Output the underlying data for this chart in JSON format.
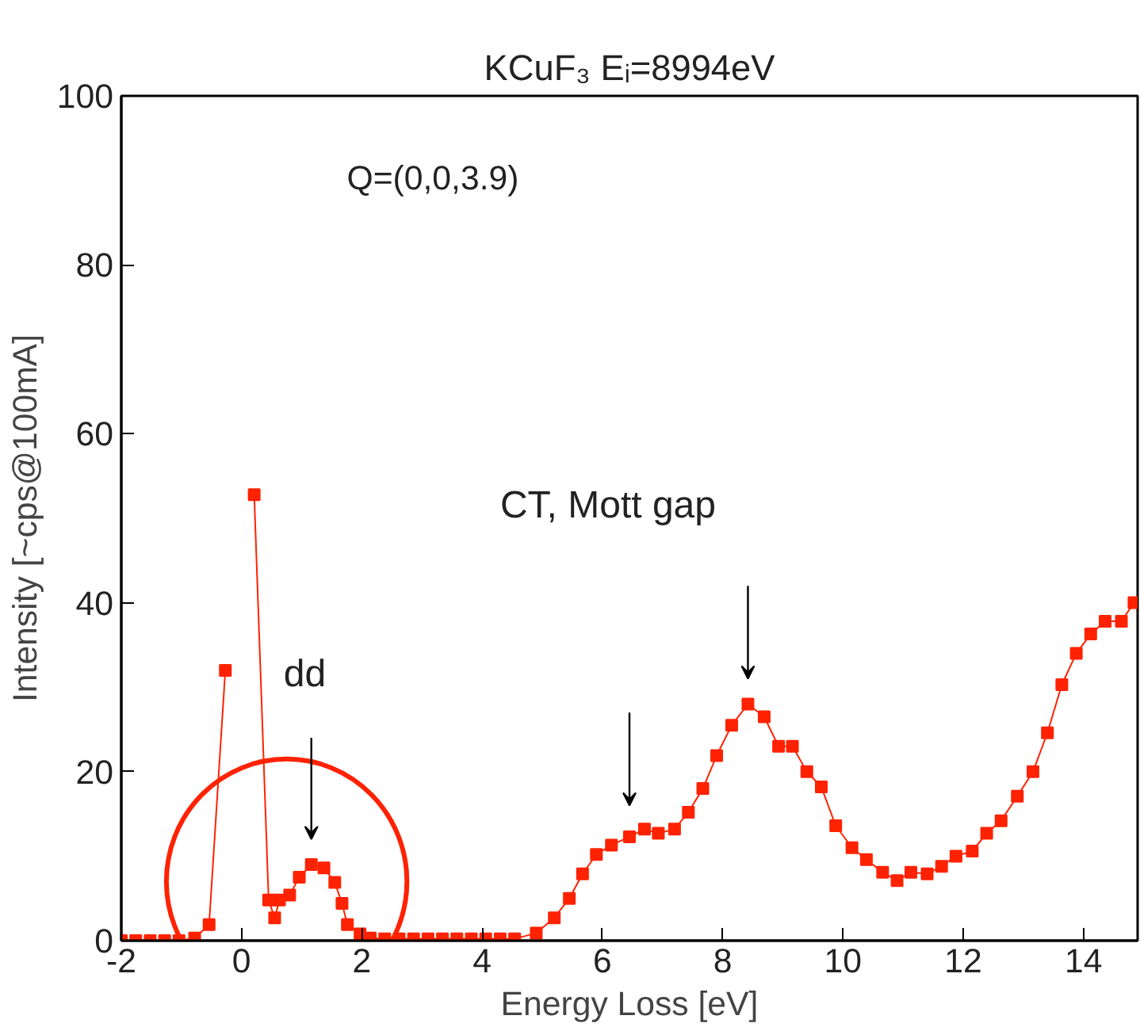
{
  "chart_data": {
    "type": "line",
    "title": "KCuF₃ Eᵢ=8994eV",
    "xlabel": "Energy Loss [eV]",
    "ylabel": "Intensity [~cps@100mA]",
    "annotations": [
      "Q=(0,0,3.9)",
      "dd",
      "CT, Mott gap"
    ],
    "x": [
      -2.0,
      -1.76,
      -1.52,
      -1.28,
      -1.04,
      -0.78,
      -0.54,
      -0.27,
      0.0,
      0.21,
      0.45,
      0.55,
      0.63,
      0.8,
      0.96,
      1.16,
      1.37,
      1.55,
      1.67,
      1.76,
      1.97,
      2.14,
      2.38,
      2.62,
      2.86,
      3.1,
      3.34,
      3.58,
      3.82,
      4.06,
      4.3,
      4.54,
      4.9,
      5.2,
      5.45,
      5.67,
      5.9,
      6.15,
      6.45,
      6.7,
      6.93,
      7.2,
      7.43,
      7.67,
      7.9,
      8.15,
      8.42,
      8.69,
      8.93,
      9.16,
      9.4,
      9.64,
      9.88,
      10.15,
      10.39,
      10.66,
      10.9,
      11.13,
      11.4,
      11.64,
      11.88,
      12.15,
      12.39,
      12.63,
      12.9,
      13.16,
      13.4,
      13.64,
      13.88,
      14.12,
      14.36,
      14.63,
      14.84
    ],
    "series": [
      {
        "color": "#ff2200",
        "values": [
          0,
          0,
          0,
          0,
          0,
          0.3,
          1.9,
          32,
          null,
          52.8,
          4.8,
          2.7,
          4.8,
          5.4,
          7.5,
          9,
          8.6,
          6.9,
          4.4,
          1.9,
          0.8,
          0.3,
          0.2,
          0.2,
          0.2,
          0.2,
          0.2,
          0.2,
          0.2,
          0.2,
          0.2,
          0.2,
          0.9,
          2.7,
          5,
          7.9,
          10.2,
          11.3,
          12.3,
          13.2,
          12.7,
          13.2,
          15.2,
          18,
          21.9,
          25.5,
          28,
          26.5,
          23,
          23,
          20,
          18.2,
          13.6,
          11,
          9.6,
          8.1,
          7.1,
          8.1,
          7.9,
          8.8,
          10,
          10.6,
          12.7,
          14.2,
          17.1,
          20,
          24.6,
          30.3,
          34,
          36.3,
          37.8,
          37.8,
          40
        ]
      }
    ],
    "xlim": [
      -2,
      14.9
    ],
    "ylim": [
      0,
      100
    ],
    "xticks": [
      -2,
      0,
      2,
      4,
      6,
      8,
      10,
      12,
      14
    ],
    "yticks": [
      0,
      20,
      40,
      60,
      80,
      100
    ],
    "grid": false,
    "marker": "square",
    "line_style": "solid"
  }
}
